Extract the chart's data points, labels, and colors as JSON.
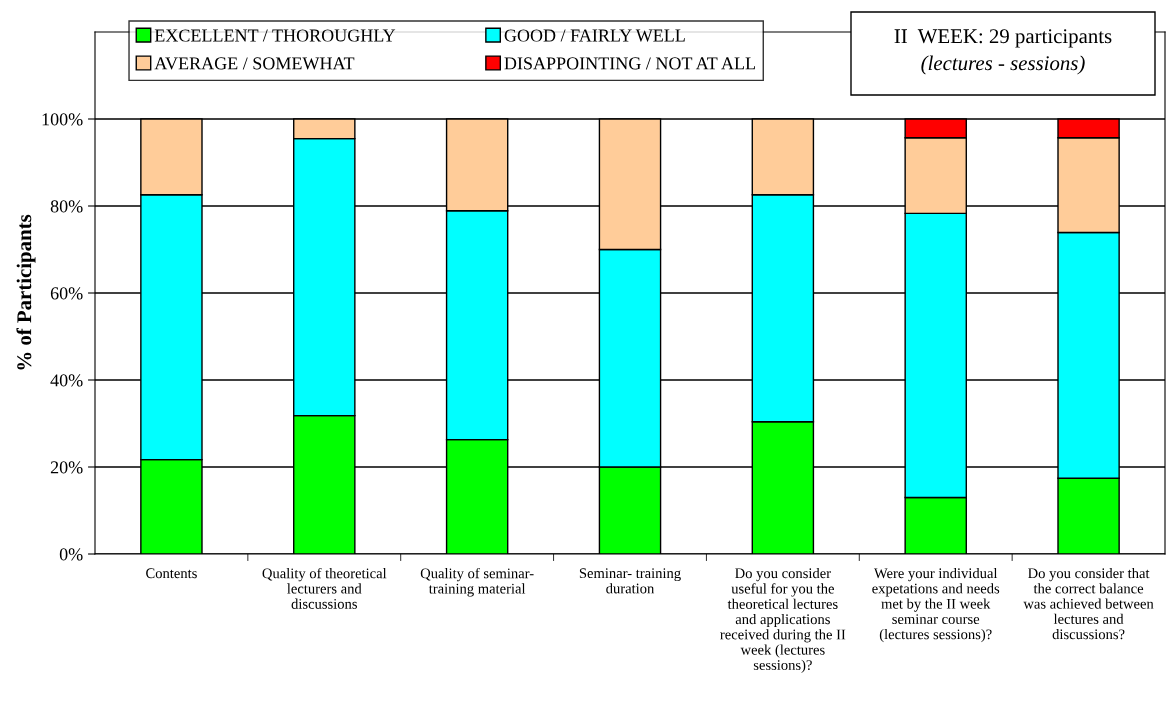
{
  "chart_data": {
    "type": "bar",
    "stacked": true,
    "ylabel": "% of Participants",
    "categories": [
      "Contents",
      "Quality of theoretical\nlecturers and\ndiscussions",
      "Quality of seminar-\ntraining material",
      "Seminar- training\nduration",
      "Do you consider\nuseful for you the\ntheoretical lectures\nand applications\nreceived during the II\nweek (lectures\nsessions)?",
      "Were your individual\nexpetations and needs\nmet by the II week\nseminar course\n(lectures sessions)?",
      "Do you consider that\nthe correct balance\nwas achieved between\nlectures and\ndiscussions?"
    ],
    "series": [
      {
        "name": "EXCELLENT / THOROUGHLY",
        "color": "#00ff00",
        "values": [
          21.7,
          31.8,
          26.3,
          20.0,
          30.4,
          13.0,
          17.4
        ]
      },
      {
        "name": "GOOD / FAIRLY WELL",
        "color": "#00ffff",
        "values": [
          60.9,
          63.7,
          52.6,
          50.0,
          52.2,
          65.3,
          56.5
        ]
      },
      {
        "name": "AVERAGE / SOMEWHAT",
        "color": "#ffcc99",
        "values": [
          17.4,
          4.5,
          21.1,
          30.0,
          17.4,
          17.4,
          21.8
        ]
      },
      {
        "name": "DISAPPOINTING / NOT AT ALL",
        "color": "#ff0000",
        "values": [
          0,
          0,
          0,
          0,
          0,
          4.3,
          4.3
        ]
      }
    ],
    "ylim": [
      0,
      120
    ],
    "yticks": [
      {
        "value": 0,
        "label": "0%"
      },
      {
        "value": 20,
        "label": "20%"
      },
      {
        "value": 40,
        "label": "40%"
      },
      {
        "value": 60,
        "label": "60%"
      },
      {
        "value": 80,
        "label": "80%"
      },
      {
        "value": 100,
        "label": "100%"
      }
    ],
    "grid": "y",
    "legend": "top left",
    "annotations": [
      "II  WEEK: 29 participants",
      "(lectures - sessions)"
    ]
  }
}
